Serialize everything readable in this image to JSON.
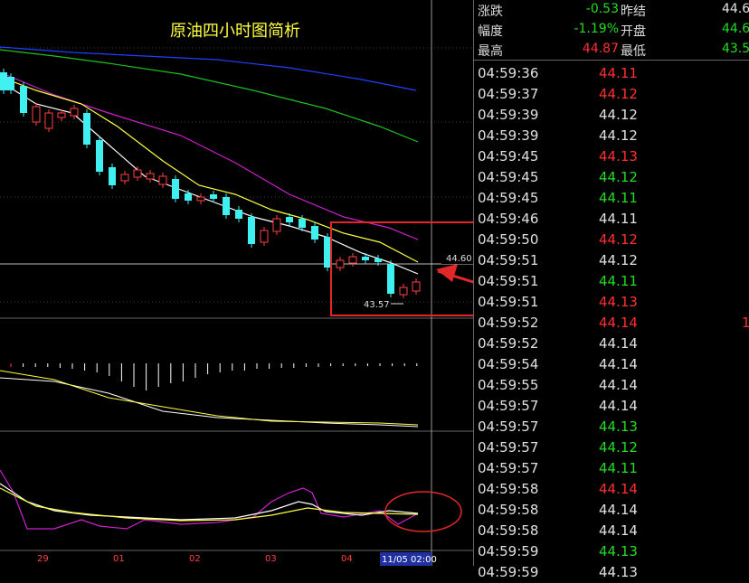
{
  "chart": {
    "title": "原油四小时图简析",
    "price_label": "44.60",
    "low_label": "43.57",
    "date_labels": [
      "29",
      "01",
      "02",
      "03",
      "04"
    ],
    "cursor_date": "11/05 02:00"
  },
  "quote_panel": {
    "rows": [
      {
        "l1": "涨跌",
        "v1": "-0.53",
        "v1_color": "#22dd22",
        "l2": "昨结",
        "v2": "44.6",
        "v2_color": "#e0e0e0"
      },
      {
        "l1": "幅度",
        "v1": "-1.19%",
        "v1_color": "#22dd22",
        "l2": "开盘",
        "v2": "44.6",
        "v2_color": "#22dd22"
      },
      {
        "l1": "最高",
        "v1": "44.87",
        "v1_color": "#ff3030",
        "l2": "最低",
        "v2": "43.5",
        "v2_color": "#22dd22"
      }
    ]
  },
  "ticks": [
    {
      "time": "04:59:36",
      "price": "44.11",
      "dir": "up"
    },
    {
      "time": "04:59:37",
      "price": "44.12",
      "dir": "up"
    },
    {
      "time": "04:59:39",
      "price": "44.12",
      "dir": "flat"
    },
    {
      "time": "04:59:39",
      "price": "44.12",
      "dir": "flat"
    },
    {
      "time": "04:59:45",
      "price": "44.13",
      "dir": "up"
    },
    {
      "time": "04:59:45",
      "price": "44.12",
      "dir": "down"
    },
    {
      "time": "04:59:45",
      "price": "44.11",
      "dir": "down"
    },
    {
      "time": "04:59:46",
      "price": "44.11",
      "dir": "flat"
    },
    {
      "time": "04:59:50",
      "price": "44.12",
      "dir": "up"
    },
    {
      "time": "04:59:51",
      "price": "44.12",
      "dir": "flat"
    },
    {
      "time": "04:59:51",
      "price": "44.11",
      "dir": "down"
    },
    {
      "time": "04:59:51",
      "price": "44.13",
      "dir": "up"
    },
    {
      "time": "04:59:52",
      "price": "44.14",
      "dir": "up",
      "vol": "1"
    },
    {
      "time": "04:59:52",
      "price": "44.14",
      "dir": "flat"
    },
    {
      "time": "04:59:54",
      "price": "44.14",
      "dir": "flat"
    },
    {
      "time": "04:59:55",
      "price": "44.14",
      "dir": "flat"
    },
    {
      "time": "04:59:57",
      "price": "44.14",
      "dir": "flat"
    },
    {
      "time": "04:59:57",
      "price": "44.13",
      "dir": "down"
    },
    {
      "time": "04:59:57",
      "price": "44.12",
      "dir": "down"
    },
    {
      "time": "04:59:57",
      "price": "44.11",
      "dir": "down"
    },
    {
      "time": "04:59:58",
      "price": "44.14",
      "dir": "up"
    },
    {
      "time": "04:59:58",
      "price": "44.14",
      "dir": "flat"
    },
    {
      "time": "04:59:58",
      "price": "44.14",
      "dir": "flat"
    },
    {
      "time": "04:59:59",
      "price": "44.13",
      "dir": "down"
    },
    {
      "time": "04:59:59",
      "price": "44.13",
      "dir": "flat"
    }
  ],
  "colors": {
    "up": "#ff3030",
    "down": "#22dd22",
    "flat": "#e0e0e0",
    "bull_candle": "#ff4040",
    "bear_candle": "#40f0f0",
    "ma_white": "#ffffff",
    "ma_yellow": "#ffff40",
    "ma_magenta": "#d020d0",
    "ma_green": "#20c020",
    "ma_blue": "#2040ff",
    "annotation": "#e02828"
  }
}
